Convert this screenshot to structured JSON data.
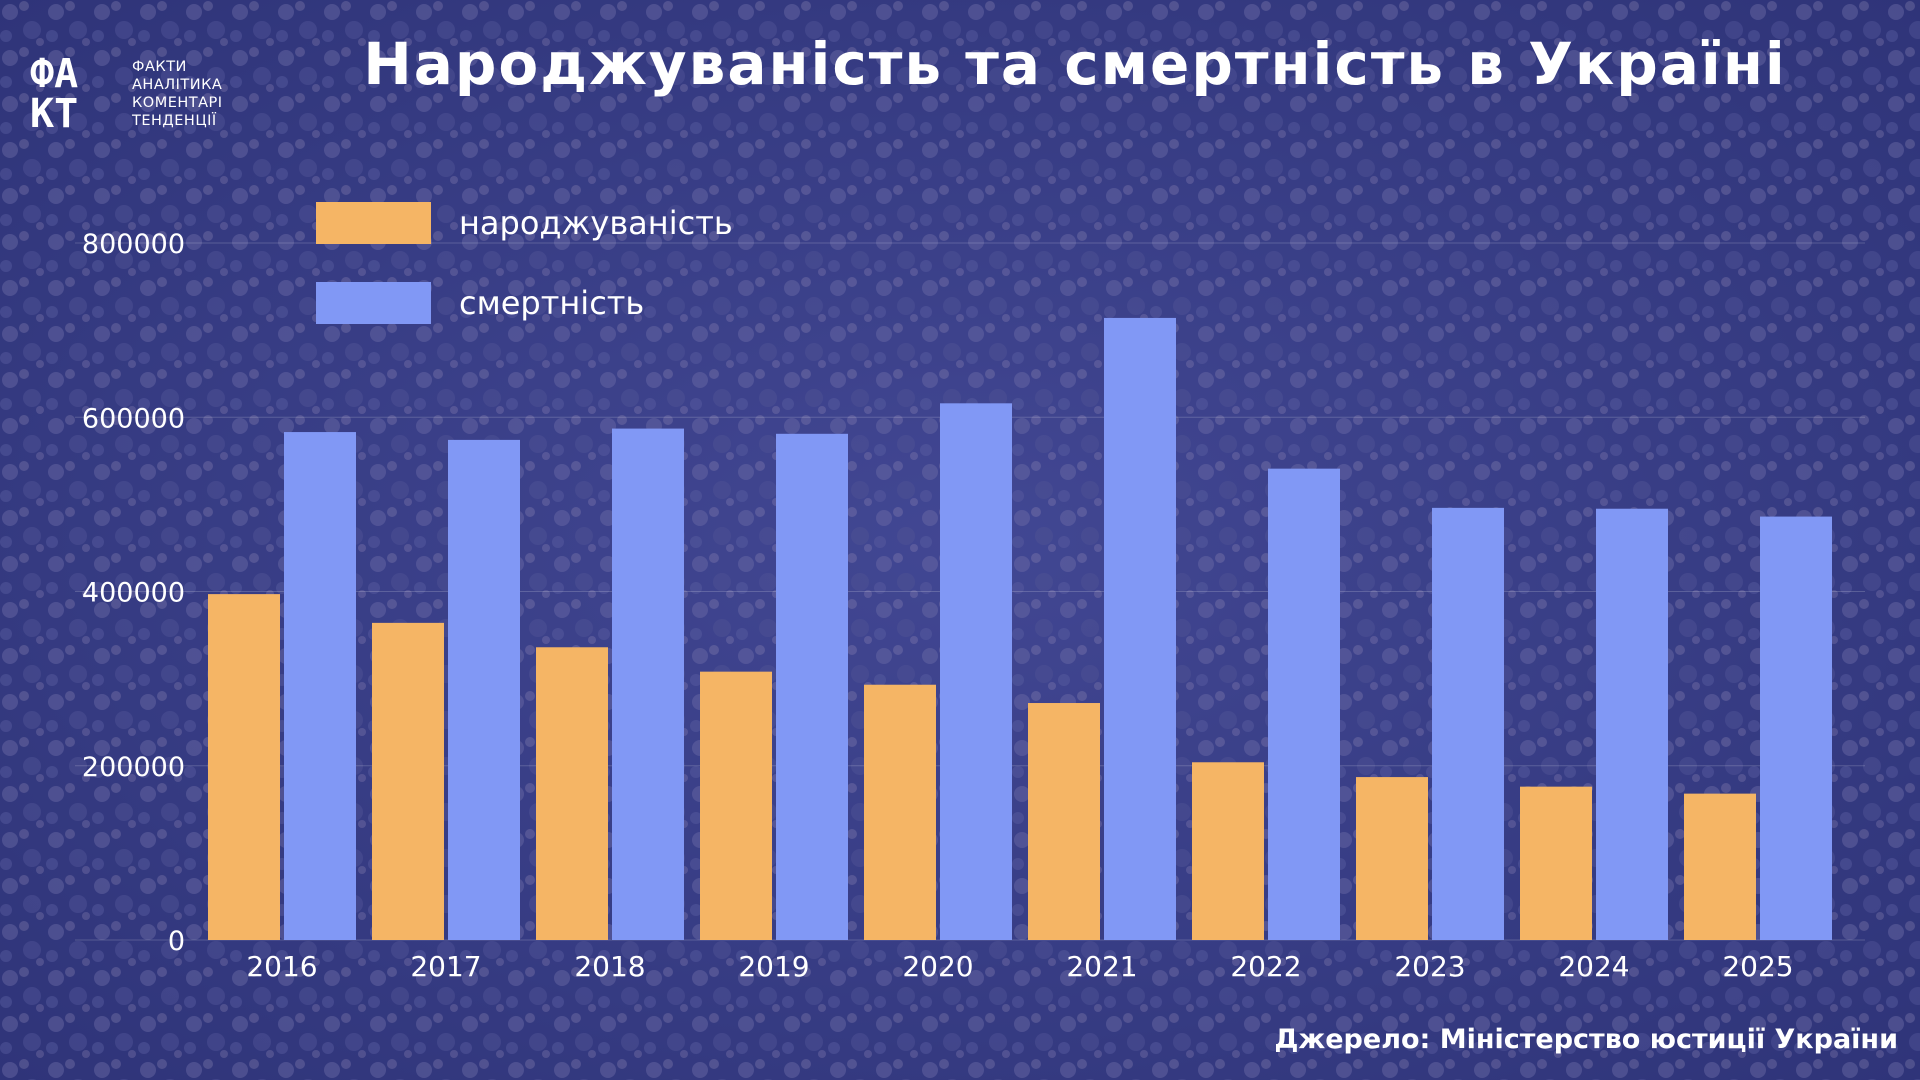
{
  "header": {
    "title": "Народжуваність та смертність в Україні"
  },
  "logo": {
    "mark_top": "ФА",
    "mark_bottom": "КТ",
    "lines": [
      "ФАКТИ",
      "АНАЛІТИКА",
      "КОМЕНТАРІ",
      "ТЕНДЕНЦІЇ"
    ]
  },
  "source": "Джерело: Міністерство юстиції України",
  "colors": {
    "births": "#F5B565",
    "deaths": "#8198F5",
    "background": "#3A3F86",
    "axis_text": "#FFFFFF"
  },
  "chart_data": {
    "type": "bar",
    "categories": [
      "2016",
      "2017",
      "2018",
      "2019",
      "2020",
      "2021",
      "2022",
      "2023",
      "2024",
      "2025"
    ],
    "series": [
      {
        "name": "народжуваність",
        "values": [
          397000,
          364000,
          336000,
          308000,
          293000,
          272000,
          204000,
          187000,
          176000,
          168000
        ]
      },
      {
        "name": "смертність",
        "values": [
          583000,
          574000,
          587000,
          581000,
          616000,
          714000,
          541000,
          496000,
          495000,
          486000
        ]
      }
    ],
    "title": "Народжуваність та смертність в Україні",
    "xlabel": "",
    "ylabel": "",
    "ylim": [
      0,
      800000
    ],
    "yticks": [
      "0",
      "200000",
      "400000",
      "600000",
      "800000"
    ],
    "grid": true,
    "legend": "top-left"
  }
}
